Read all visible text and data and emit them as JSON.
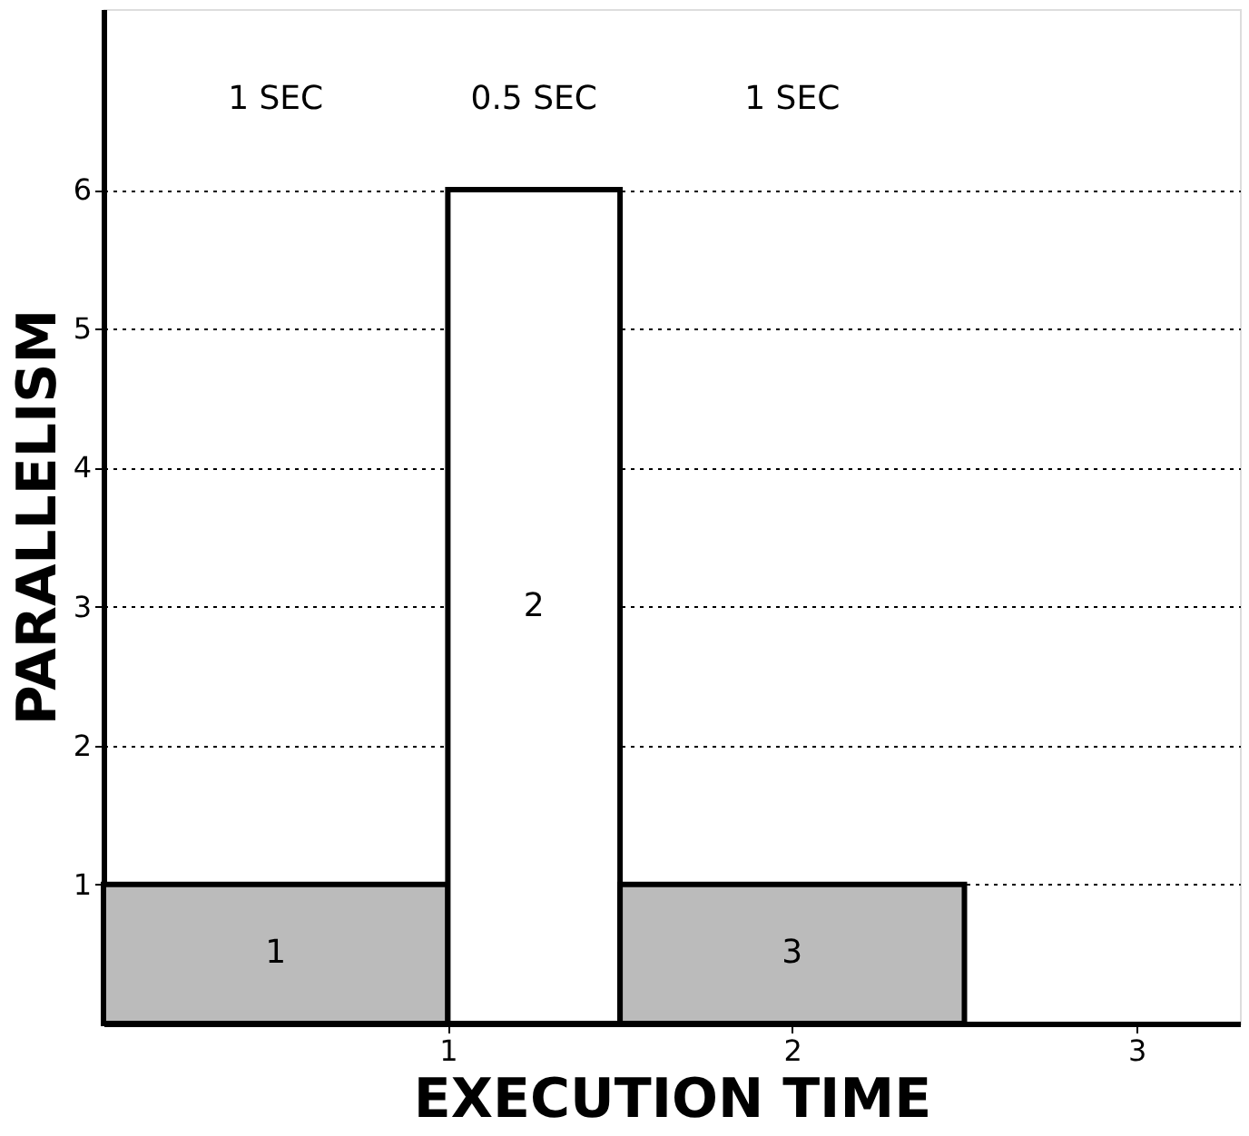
{
  "chart_data": {
    "type": "histogram",
    "bins": [
      0,
      1,
      1.5,
      2.5
    ],
    "values": [
      1,
      6,
      1
    ],
    "colors": [
      "#bbbbbb",
      "#ffffff",
      "#bbbbbb"
    ],
    "xlabel": "EXECUTION TIME",
    "ylabel": "PARALLELISM",
    "xlim": [
      0,
      3.3
    ],
    "xticks": [
      1,
      2,
      3
    ],
    "ylim": [
      0,
      7.3
    ],
    "yticks": [
      1,
      2,
      3,
      4,
      5,
      6
    ],
    "grid": "y",
    "line_style": "dotted",
    "annotations": [
      "1",
      "2",
      "3",
      "1 SEC",
      "0.5 SEC",
      "1 SEC"
    ]
  }
}
